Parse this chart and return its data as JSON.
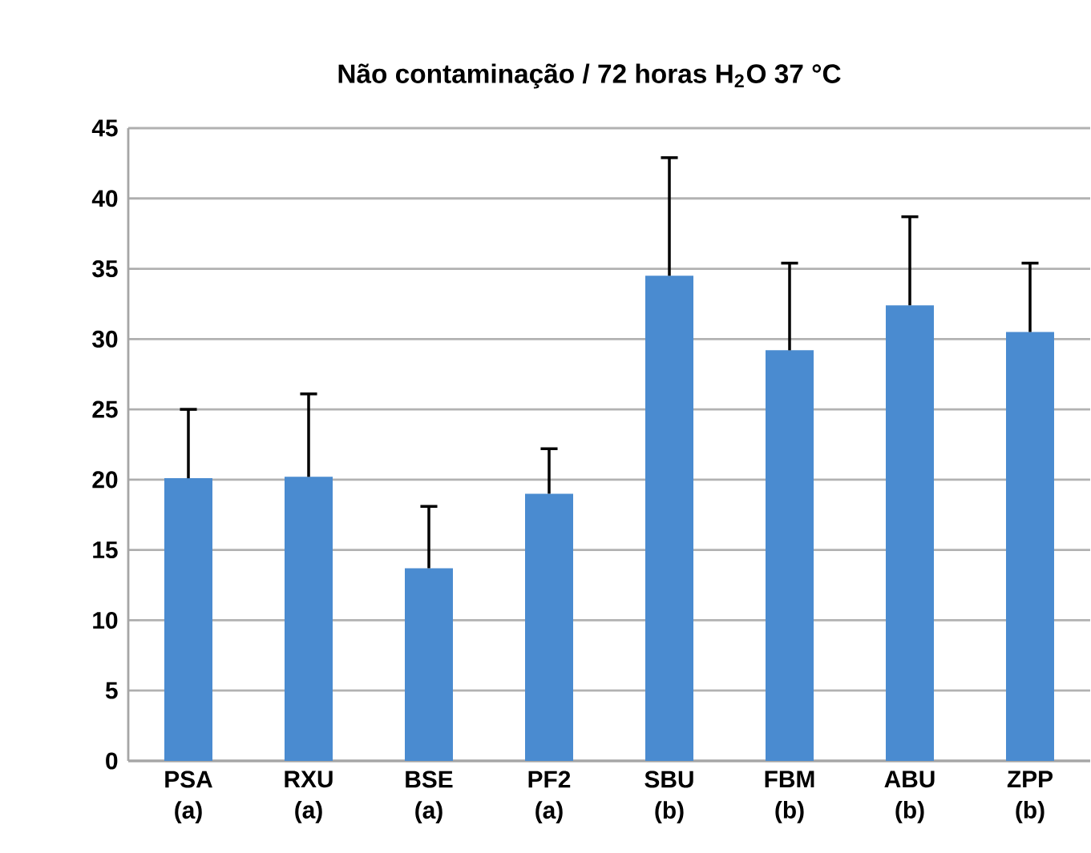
{
  "chart_data": {
    "type": "bar",
    "title": "Não contaminação / 72 horas H$_{2}$O 37 °C",
    "categories": [
      "PSA (a)",
      "RXU (a)",
      "BSE (a)",
      "PF2 (a)",
      "SBU (b)",
      "FBM (b)",
      "ABU (b)",
      "ZPP (b)"
    ],
    "values": [
      20.1,
      20.2,
      13.7,
      19.0,
      34.5,
      29.2,
      32.4,
      30.5
    ],
    "errors": [
      [
        20.1,
        25.0
      ],
      [
        20.2,
        26.1
      ],
      [
        13.7,
        18.1
      ],
      [
        19.0,
        22.2
      ],
      [
        34.5,
        42.9
      ],
      [
        29.2,
        35.4
      ],
      [
        32.4,
        38.7
      ],
      [
        30.5,
        35.4
      ]
    ],
    "color": "#4a8bd0",
    "ylim": [
      0,
      45
    ],
    "yticks": [
      0,
      5,
      10,
      15,
      20,
      25,
      30,
      35,
      40,
      45
    ],
    "grid": "y"
  }
}
